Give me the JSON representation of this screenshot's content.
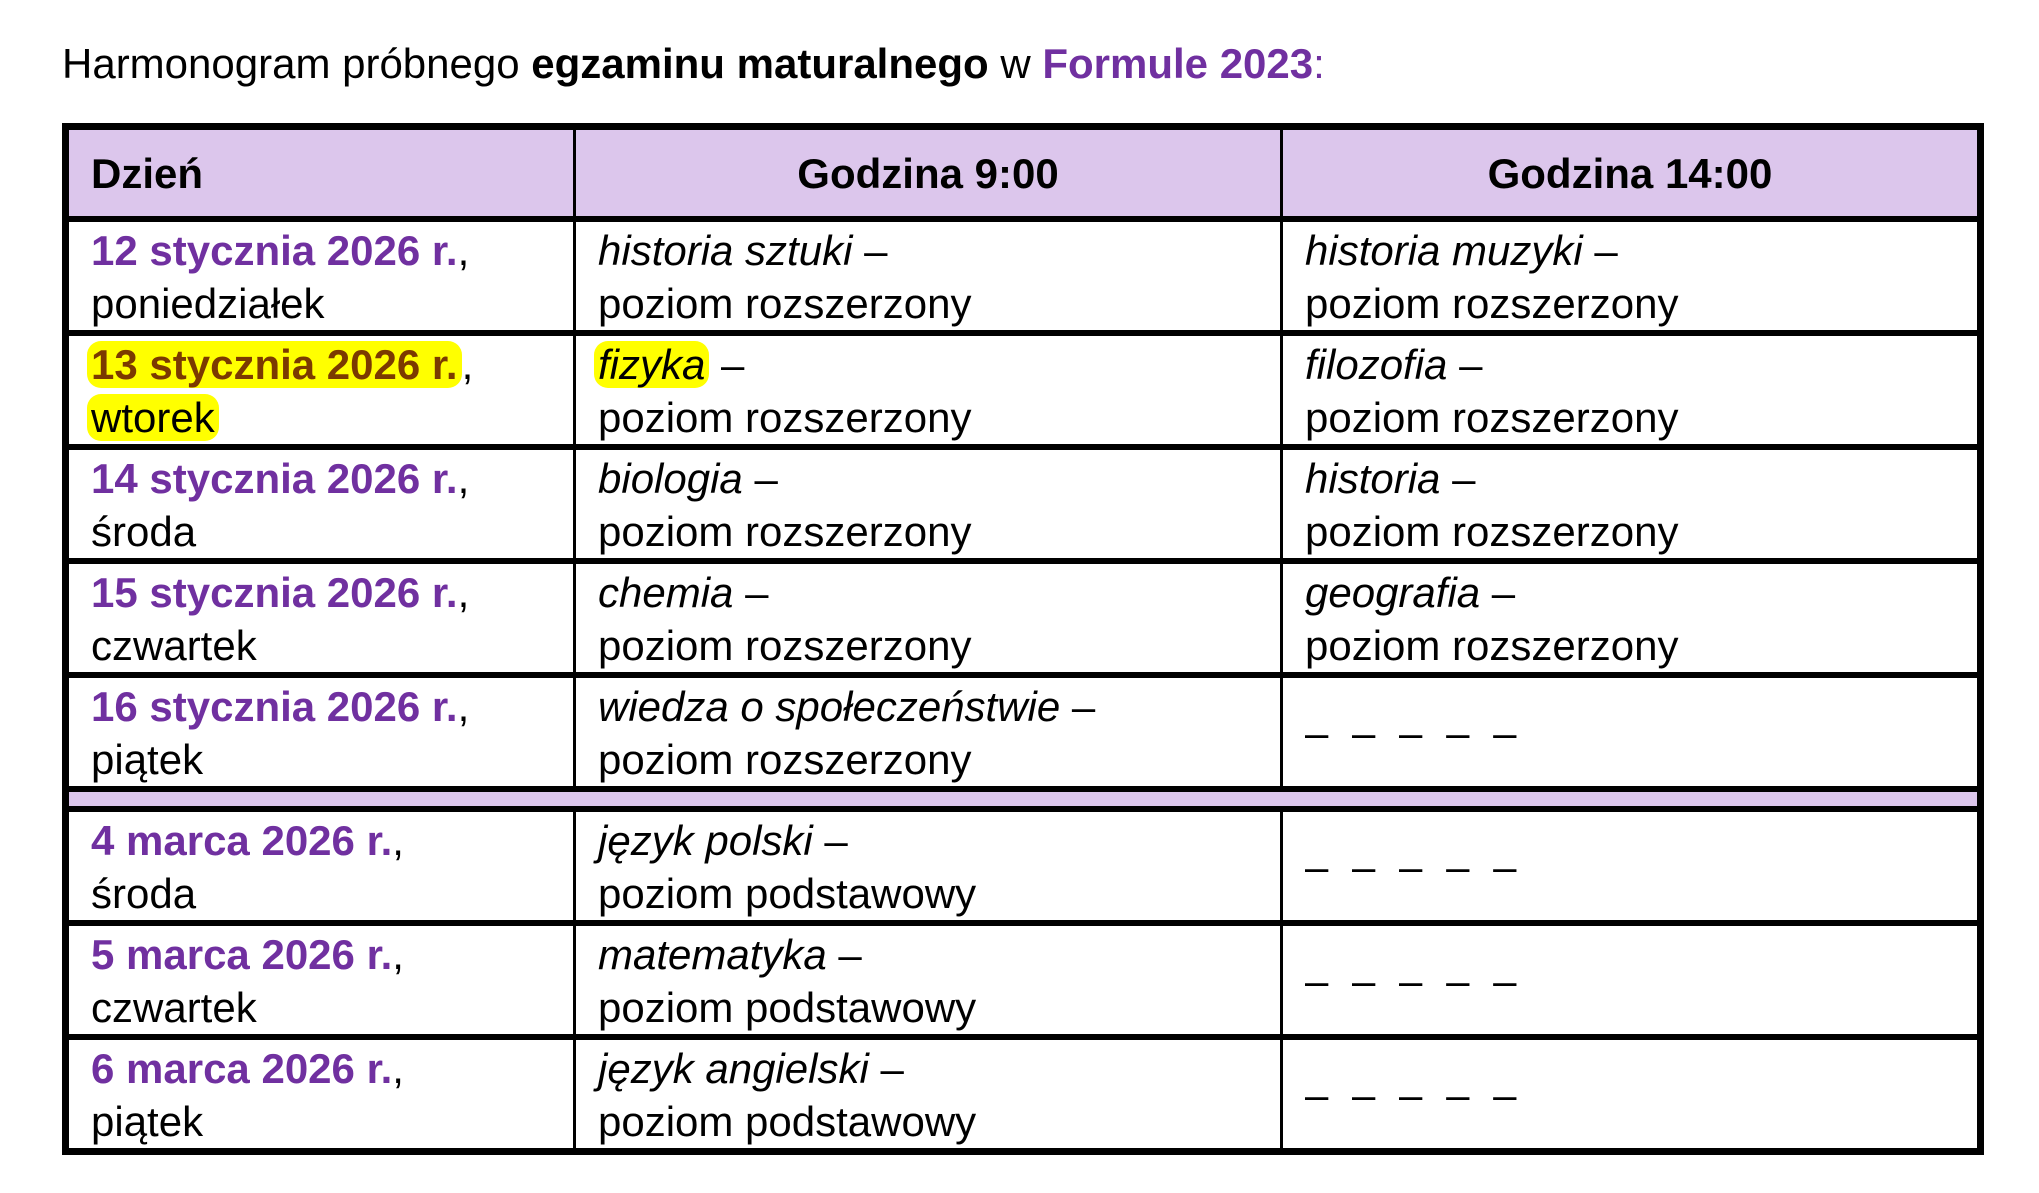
{
  "title": {
    "part1": "Harmonogram próbnego ",
    "part2": "egzaminu maturalnego",
    "part3": " w ",
    "part4": "Formule 2023",
    "part5": ":"
  },
  "colors": {
    "accent": "#7030a0",
    "header_bg": "#dcc6ec",
    "highlight": "#ffff00"
  },
  "table": {
    "headers": [
      "Dzień",
      "Godzina 9:00",
      "Godzina 14:00"
    ],
    "rows_january": [
      {
        "date": "12 stycznia 2026 r.",
        "weekday": "poniedziałek",
        "am_subject": "historia sztuki",
        "am_level": "poziom rozszerzony",
        "pm_subject": "historia muzyki",
        "pm_level": "poziom rozszerzony"
      },
      {
        "date": "13 stycznia 2026 r.",
        "weekday": "wtorek",
        "am_subject": "fizyka",
        "am_level": "poziom rozszerzony",
        "pm_subject": "filozofia",
        "pm_level": "poziom rozszerzony",
        "highlighted": true
      },
      {
        "date": "14 stycznia 2026 r.",
        "weekday": "środa",
        "am_subject": "biologia",
        "am_level": "poziom rozszerzony",
        "pm_subject": "historia",
        "pm_level": "poziom rozszerzony"
      },
      {
        "date": "15 stycznia 2026 r.",
        "weekday": "czwartek",
        "am_subject": "chemia",
        "am_level": "poziom rozszerzony",
        "pm_subject": "geografia",
        "pm_level": "poziom rozszerzony"
      },
      {
        "date": "16 stycznia 2026 r.",
        "weekday": "piątek",
        "am_subject": "wiedza o społeczeństwie",
        "am_level": "poziom rozszerzony",
        "pm_empty": "– – – – –"
      }
    ],
    "rows_march": [
      {
        "date": "4 marca 2026 r.",
        "weekday": "środa",
        "am_subject": "język polski",
        "am_level": "poziom podstawowy",
        "pm_empty": "– – – – –"
      },
      {
        "date": "5 marca 2026 r.",
        "weekday": "czwartek",
        "am_subject": "matematyka",
        "am_level": "poziom podstawowy",
        "pm_empty": "– – – – –"
      },
      {
        "date": "6 marca 2026 r.",
        "weekday": "piątek",
        "am_subject": "język angielski",
        "am_level": "poziom podstawowy",
        "pm_empty": "– – – – –"
      }
    ]
  }
}
